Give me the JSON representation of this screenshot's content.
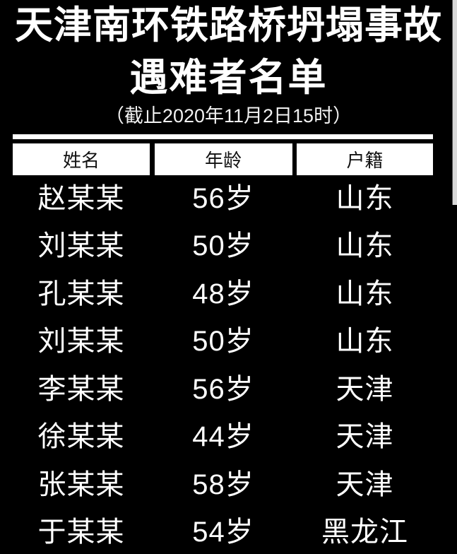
{
  "poster": {
    "title_line1": "天津南环铁路桥坍塌事故",
    "title_line2": "遇难者名单",
    "subtitle": "（截止2020年11月2日15时）",
    "colors": {
      "background": "#000000",
      "text": "#ffffff",
      "header_box_bg": "#ffffff",
      "header_box_text": "#111111",
      "edge_strip": "#d8d8d8"
    }
  },
  "table": {
    "columns": [
      {
        "key": "name",
        "label": "姓名"
      },
      {
        "key": "age",
        "label": "年龄"
      },
      {
        "key": "origin",
        "label": "户籍"
      }
    ],
    "rows": [
      {
        "name": "赵某某",
        "age": "56岁",
        "origin": "山东"
      },
      {
        "name": "刘某某",
        "age": "50岁",
        "origin": "山东"
      },
      {
        "name": "孔某某",
        "age": "48岁",
        "origin": "山东"
      },
      {
        "name": "刘某某",
        "age": "50岁",
        "origin": "山东"
      },
      {
        "name": "李某某",
        "age": "56岁",
        "origin": "天津"
      },
      {
        "name": "徐某某",
        "age": "44岁",
        "origin": "天津"
      },
      {
        "name": "张某某",
        "age": "58岁",
        "origin": "天津"
      },
      {
        "name": "于某某",
        "age": "54岁",
        "origin": "黑龙江"
      }
    ]
  }
}
